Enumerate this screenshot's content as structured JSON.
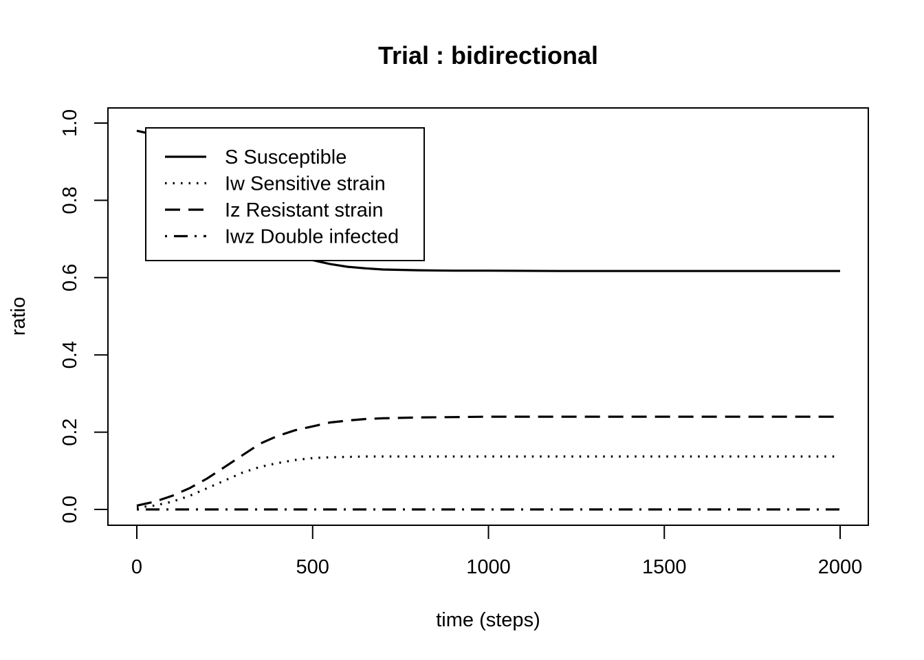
{
  "chart_data": {
    "type": "line",
    "title": "Trial : bidirectional",
    "xlabel": "time (steps)",
    "ylabel": "ratio",
    "xlim": [
      0,
      2000
    ],
    "ylim": [
      0,
      1
    ],
    "xticks": [
      0,
      500,
      1000,
      1500,
      2000
    ],
    "xtick_labels": [
      "0",
      "500",
      "1000",
      "1500",
      "2000"
    ],
    "yticks": [
      0.0,
      0.2,
      0.4,
      0.6,
      0.8,
      1.0
    ],
    "ytick_labels": [
      "0.0",
      "0.2",
      "0.4",
      "0.6",
      "0.8",
      "1.0"
    ],
    "grid": false,
    "legend_position": "top-left",
    "x": [
      0,
      50,
      100,
      150,
      200,
      250,
      300,
      350,
      400,
      450,
      500,
      550,
      600,
      650,
      700,
      800,
      900,
      1000,
      1200,
      1400,
      1600,
      1800,
      2000
    ],
    "series": [
      {
        "name": "S Susceptible",
        "linestyle": "solid",
        "color": "#000000",
        "values": [
          0.98,
          0.97,
          0.95,
          0.92,
          0.88,
          0.83,
          0.78,
          0.73,
          0.69,
          0.66,
          0.645,
          0.635,
          0.628,
          0.624,
          0.621,
          0.619,
          0.618,
          0.618,
          0.617,
          0.617,
          0.617,
          0.617,
          0.617
        ]
      },
      {
        "name": "Iw Sensitive strain",
        "linestyle": "dotted",
        "color": "#000000",
        "values": [
          0.005,
          0.01,
          0.02,
          0.035,
          0.055,
          0.075,
          0.095,
          0.11,
          0.12,
          0.128,
          0.133,
          0.135,
          0.136,
          0.137,
          0.137,
          0.137,
          0.137,
          0.137,
          0.137,
          0.137,
          0.137,
          0.137,
          0.137
        ]
      },
      {
        "name": "Iz Resistant strain",
        "linestyle": "dashed",
        "color": "#000000",
        "values": [
          0.01,
          0.02,
          0.035,
          0.055,
          0.08,
          0.11,
          0.14,
          0.17,
          0.19,
          0.205,
          0.215,
          0.225,
          0.23,
          0.234,
          0.236,
          0.238,
          0.239,
          0.24,
          0.24,
          0.24,
          0.24,
          0.24,
          0.24
        ]
      },
      {
        "name": "Iwz Double infected",
        "linestyle": "dashdot",
        "color": "#000000",
        "values": [
          0.0,
          0.0,
          0.0,
          0.0,
          0.0,
          0.0,
          0.0,
          0.0,
          0.0,
          0.0,
          0.0,
          0.0,
          0.0,
          0.0,
          0.0,
          0.0,
          0.0,
          0.0,
          0.0,
          0.0,
          0.0,
          0.0,
          0.0
        ]
      }
    ]
  }
}
